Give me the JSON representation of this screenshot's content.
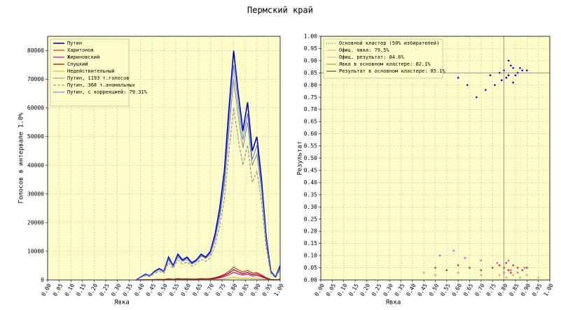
{
  "title": "Пермский край",
  "chart_data": [
    {
      "type": "line",
      "xlabel": "Явка",
      "ylabel": "Голосов в интервале 1.0%",
      "xlim": [
        0,
        1
      ],
      "ylim": [
        0,
        85000
      ],
      "xticks": [
        {
          "value": 0,
          "label": "0.00"
        },
        {
          "value": 0.05,
          "label": "0.05"
        },
        {
          "value": 0.1,
          "label": "0.10"
        },
        {
          "value": 0.15,
          "label": "0.15"
        },
        {
          "value": 0.2,
          "label": "0.20"
        },
        {
          "value": 0.25,
          "label": "0.25"
        },
        {
          "value": 0.3,
          "label": "0.30"
        },
        {
          "value": 0.35,
          "label": "0.35"
        },
        {
          "value": 0.4,
          "label": "0.40"
        },
        {
          "value": 0.45,
          "label": "0.45"
        },
        {
          "value": 0.5,
          "label": "0.50"
        },
        {
          "value": 0.55,
          "label": "0.55"
        },
        {
          "value": 0.6,
          "label": "0.60"
        },
        {
          "value": 0.65,
          "label": "0.65"
        },
        {
          "value": 0.7,
          "label": "0.70"
        },
        {
          "value": 0.75,
          "label": "0.75"
        },
        {
          "value": 0.8,
          "label": "0.80"
        },
        {
          "value": 0.85,
          "label": "0.85"
        },
        {
          "value": 0.9,
          "label": "0.90"
        },
        {
          "value": 0.95,
          "label": "0.95"
        },
        {
          "value": 1,
          "label": "1.00"
        }
      ],
      "yticks": [
        0,
        10000,
        20000,
        30000,
        40000,
        50000,
        60000,
        70000,
        80000
      ],
      "grid": true,
      "x": [
        0.38,
        0.4,
        0.42,
        0.44,
        0.46,
        0.48,
        0.5,
        0.52,
        0.54,
        0.56,
        0.58,
        0.6,
        0.62,
        0.64,
        0.66,
        0.68,
        0.7,
        0.72,
        0.74,
        0.76,
        0.78,
        0.8,
        0.82,
        0.84,
        0.86,
        0.88,
        0.9,
        0.92,
        0.94,
        0.96,
        0.98,
        1.0
      ],
      "series": [
        {
          "name": "Путин",
          "color": "#0000cc",
          "width": 1.6,
          "values": [
            0,
            1000,
            2000,
            1500,
            3000,
            4000,
            3000,
            8000,
            5000,
            9000,
            7000,
            8000,
            6000,
            7000,
            9000,
            8000,
            10000,
            16000,
            25000,
            38000,
            60000,
            80000,
            65000,
            52000,
            62000,
            45000,
            50000,
            35000,
            15000,
            3000,
            1000,
            5000
          ]
        },
        {
          "name": "Харитонов",
          "color": "#cc3333",
          "width": 1.2,
          "values": [
            0,
            50,
            100,
            80,
            150,
            200,
            150,
            400,
            250,
            450,
            350,
            400,
            300,
            350,
            450,
            400,
            500,
            800,
            1300,
            2000,
            3000,
            4500,
            3500,
            2800,
            3300,
            2400,
            2600,
            1800,
            800,
            150,
            50,
            250
          ]
        },
        {
          "name": "Жириновский",
          "color": "#cc00cc",
          "width": 1.2,
          "values": [
            0,
            30,
            60,
            50,
            90,
            120,
            90,
            240,
            150,
            270,
            210,
            240,
            180,
            210,
            270,
            240,
            300,
            480,
            780,
            1200,
            1800,
            2700,
            2100,
            1700,
            2000,
            1400,
            1600,
            1100,
            500,
            90,
            30,
            150
          ]
        },
        {
          "name": "Слуцкий",
          "color": "#990000",
          "width": 1.2,
          "values": [
            0,
            40,
            80,
            60,
            120,
            160,
            120,
            320,
            200,
            360,
            280,
            320,
            240,
            280,
            360,
            320,
            400,
            640,
            1000,
            1600,
            2400,
            3600,
            2800,
            2200,
            2600,
            1900,
            2100,
            1400,
            600,
            120,
            40,
            200
          ]
        },
        {
          "name": "Недействительный",
          "color": "#e6a020",
          "width": 1,
          "values": [
            0,
            10,
            20,
            15,
            30,
            40,
            30,
            80,
            50,
            90,
            70,
            80,
            60,
            70,
            90,
            80,
            100,
            160,
            250,
            400,
            600,
            900,
            700,
            550,
            650,
            480,
            520,
            360,
            160,
            30,
            10,
            50
          ]
        },
        {
          "name": "Путин, 1193 т.голосов",
          "color": "#888888",
          "width": 1,
          "values": [
            0,
            900,
            1800,
            1400,
            2700,
            3600,
            2800,
            7000,
            4600,
            8000,
            6500,
            7200,
            5500,
            6500,
            8300,
            7500,
            9000,
            14000,
            22000,
            33000,
            52000,
            70000,
            57000,
            46000,
            55000,
            40000,
            44000,
            31000,
            13000,
            2600,
            900,
            4000
          ]
        },
        {
          "name": "Путин, 368 т.аномальных",
          "color": "#888888",
          "width": 1,
          "dash": "4,2",
          "values": [
            0,
            800,
            1500,
            1200,
            2300,
            3000,
            2400,
            6000,
            4000,
            7000,
            5600,
            6300,
            4800,
            5600,
            7200,
            6500,
            7800,
            12000,
            19000,
            28000,
            45000,
            60000,
            49000,
            40000,
            47000,
            34000,
            38000,
            27000,
            11000,
            2200,
            800,
            3500
          ]
        },
        {
          "name": "Путин, с коррекцией: 79.31%",
          "color": "#3366ff",
          "width": 0.8,
          "values": [
            0,
            950,
            1900,
            1450,
            2850,
            3800,
            2900,
            7500,
            4800,
            8500,
            6700,
            7600,
            5700,
            6700,
            8600,
            7700,
            9500,
            15000,
            23000,
            35000,
            56000,
            75000,
            61000,
            49000,
            58000,
            42000,
            47000,
            33000,
            14000,
            2800,
            950,
            4500
          ]
        }
      ]
    },
    {
      "type": "scatter",
      "xlabel": "Явка",
      "ylabel": "Результат",
      "xlim": [
        0,
        1
      ],
      "ylim": [
        0,
        1
      ],
      "xticks": [
        {
          "value": 0,
          "label": "0.00"
        },
        {
          "value": 0.05,
          "label": "0.05"
        },
        {
          "value": 0.1,
          "label": "0.10"
        },
        {
          "value": 0.15,
          "label": "0.15"
        },
        {
          "value": 0.2,
          "label": "0.20"
        },
        {
          "value": 0.25,
          "label": "0.25"
        },
        {
          "value": 0.3,
          "label": "0.30"
        },
        {
          "value": 0.35,
          "label": "0.35"
        },
        {
          "value": 0.4,
          "label": "0.40"
        },
        {
          "value": 0.45,
          "label": "0.45"
        },
        {
          "value": 0.5,
          "label": "0.50"
        },
        {
          "value": 0.55,
          "label": "0.55"
        },
        {
          "value": 0.6,
          "label": "0.60"
        },
        {
          "value": 0.65,
          "label": "0.65"
        },
        {
          "value": 0.7,
          "label": "0.70"
        },
        {
          "value": 0.75,
          "label": "0.75"
        },
        {
          "value": 0.8,
          "label": "0.80"
        },
        {
          "value": 0.85,
          "label": "0.85"
        },
        {
          "value": 0.9,
          "label": "0.90"
        },
        {
          "value": 0.95,
          "label": "0.95"
        },
        {
          "value": 1,
          "label": "1.00"
        }
      ],
      "yticks": [
        {
          "value": 0,
          "label": "0.00"
        },
        {
          "value": 0.05,
          "label": "0.05"
        },
        {
          "value": 0.1,
          "label": "0.10"
        },
        {
          "value": 0.15,
          "label": "0.15"
        },
        {
          "value": 0.2,
          "label": "0.20"
        },
        {
          "value": 0.25,
          "label": "0.25"
        },
        {
          "value": 0.3,
          "label": "0.30"
        },
        {
          "value": 0.35,
          "label": "0.35"
        },
        {
          "value": 0.4,
          "label": "0.40"
        },
        {
          "value": 0.45,
          "label": "0.45"
        },
        {
          "value": 0.5,
          "label": "0.50"
        },
        {
          "value": 0.55,
          "label": "0.55"
        },
        {
          "value": 0.6,
          "label": "0.60"
        },
        {
          "value": 0.65,
          "label": "0.65"
        },
        {
          "value": 0.7,
          "label": "0.70"
        },
        {
          "value": 0.75,
          "label": "0.75"
        },
        {
          "value": 0.8,
          "label": "0.80"
        },
        {
          "value": 0.85,
          "label": "0.85"
        },
        {
          "value": 0.9,
          "label": "0.90"
        },
        {
          "value": 0.95,
          "label": "0.95"
        },
        {
          "value": 1,
          "label": "1.00"
        }
      ],
      "grid": true,
      "vline": 0.8,
      "hline": 0.85,
      "legend": [
        {
          "label": "Основной кластер (50% избирателей)",
          "color": "#555555",
          "dash": "1,2"
        },
        {
          "label": "Офиц. явка: 79.5%",
          "color": "#bbbbbb"
        },
        {
          "label": "Офиц. результат: 84.6%",
          "color": "#bbbbbb"
        },
        {
          "label": "Явка в основном кластере: 82.1%",
          "color": "#aa7733"
        },
        {
          "label": "Результат в основном кластере: 85.1%",
          "color": "#333333"
        }
      ],
      "series": [
        {
          "color": "#0000ee",
          "x": [
            0.78,
            0.8,
            0.82,
            0.84,
            0.86,
            0.88,
            0.81,
            0.83,
            0.85,
            0.79,
            0.87,
            0.9,
            0.76,
            0.72,
            0.68,
            0.64,
            0.6,
            0.74,
            0.82,
            0.84
          ],
          "values": [
            0.85,
            0.86,
            0.84,
            0.87,
            0.85,
            0.86,
            0.83,
            0.88,
            0.84,
            0.82,
            0.87,
            0.86,
            0.8,
            0.78,
            0.75,
            0.8,
            0.83,
            0.84,
            0.9,
            0.81
          ]
        },
        {
          "color": "#ee2222",
          "x": [
            0.5,
            0.55,
            0.6,
            0.65,
            0.7,
            0.75,
            0.78,
            0.8,
            0.82,
            0.84,
            0.86,
            0.88,
            0.9,
            0.81,
            0.83
          ],
          "values": [
            0.05,
            0.04,
            0.06,
            0.05,
            0.04,
            0.05,
            0.06,
            0.05,
            0.04,
            0.06,
            0.05,
            0.04,
            0.05,
            0.07,
            0.03
          ]
        },
        {
          "color": "#ee44ee",
          "x": [
            0.52,
            0.58,
            0.63,
            0.7,
            0.77,
            0.8,
            0.83,
            0.86,
            0.89,
            0.82
          ],
          "values": [
            0.1,
            0.12,
            0.09,
            0.08,
            0.07,
            0.03,
            0.04,
            0.03,
            0.05,
            0.08
          ]
        },
        {
          "color": "#f0a020",
          "x": [
            0.45,
            0.5,
            0.6,
            0.7,
            0.78,
            0.81,
            0.84,
            0.87,
            0.9,
            0.95
          ],
          "values": [
            0.03,
            0.02,
            0.03,
            0.02,
            0.02,
            0.01,
            0.02,
            0.01,
            0.02,
            0.01
          ]
        }
      ]
    }
  ]
}
